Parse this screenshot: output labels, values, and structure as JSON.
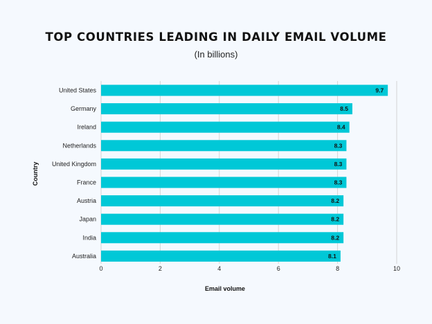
{
  "chart_data": {
    "type": "bar",
    "orientation": "horizontal",
    "title": "TOP COUNTRIES LEADING IN DAILY EMAIL VOLUME",
    "subtitle": "(In billions)",
    "xlabel": "Email volume",
    "ylabel": "Country",
    "xlim": [
      0,
      10
    ],
    "xticks": [
      "0",
      "2",
      "4",
      "6",
      "8",
      "10"
    ],
    "categories": [
      "United States",
      "Germany",
      "Ireland",
      "Netherlands",
      "United Kingdom",
      "France",
      "Austria",
      "Japan",
      "India",
      "Australia"
    ],
    "values": [
      9.7,
      8.5,
      8.4,
      8.3,
      8.3,
      8.3,
      8.2,
      8.2,
      8.2,
      8.1
    ],
    "value_labels": [
      "9.7",
      "8.5",
      "8.4",
      "8.3",
      "8.3",
      "8.3",
      "8.2",
      "8.2",
      "8.2",
      "8.1"
    ],
    "grid": "vertical",
    "legend": "none",
    "colors": {
      "bar": "#00c8d7",
      "background": "#f5f9fe",
      "grid": "#d4d4d4"
    }
  }
}
